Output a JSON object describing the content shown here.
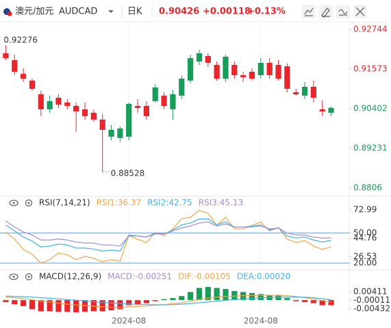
{
  "header": {
    "name": "澳元/加元",
    "symbol": "AUDCAD",
    "period": "日K",
    "price": "0.90426",
    "change": "+0.00118",
    "change_pct": "+0.13%"
  },
  "chart_data": [
    {
      "type": "candlestick",
      "categories": [
        null,
        null,
        null,
        null,
        null,
        null,
        null,
        null,
        null,
        null,
        null,
        null,
        null,
        null,
        "2024-08",
        null,
        null,
        null,
        null,
        null,
        null,
        null,
        null,
        null,
        null,
        null,
        null,
        null,
        null,
        "2024-08",
        null,
        null,
        null,
        null,
        null,
        null,
        null,
        null
      ],
      "open": [
        0.92037,
        0.91836,
        0.91432,
        0.9123,
        0.90826,
        0.90382,
        0.90725,
        0.90584,
        0.90483,
        0.90382,
        0.90281,
        0.90079,
        0.89574,
        0.89534,
        0.89574,
        0.90483,
        0.90483,
        0.90624,
        0.90786,
        0.90382,
        0.90786,
        0.9123,
        0.91795,
        0.91957,
        0.91694,
        0.9129,
        0.91694,
        0.91391,
        0.91492,
        0.91391,
        0.91755,
        0.91694,
        0.91654,
        0.90887,
        0.90786,
        0.91048,
        0.90382,
        0.90281
      ],
      "high": [
        0.92276,
        0.91997,
        0.91593,
        0.9129,
        0.90927,
        0.90786,
        0.90826,
        0.90685,
        0.90584,
        0.90584,
        0.90382,
        0.9024,
        0.89917,
        0.89877,
        0.90584,
        0.90685,
        0.90624,
        0.91129,
        0.90887,
        0.90947,
        0.91391,
        0.91997,
        0.92138,
        0.92037,
        0.91795,
        0.91997,
        0.91795,
        0.91492,
        0.91593,
        0.91896,
        0.91896,
        0.91836,
        0.91735,
        0.90988,
        0.91189,
        0.9123,
        0.90644,
        0.90462
      ],
      "low": [
        0.91836,
        0.91391,
        0.91189,
        0.90927,
        0.9018,
        0.90281,
        0.90422,
        0.90382,
        0.89716,
        0.90079,
        0.90018,
        0.88528,
        0.89473,
        0.89413,
        0.89473,
        0.90281,
        0.90079,
        0.90584,
        0.90382,
        0.90079,
        0.90685,
        0.91149,
        0.91694,
        0.91634,
        0.9123,
        0.91189,
        0.9129,
        0.91189,
        0.9123,
        0.9129,
        0.9129,
        0.9123,
        0.90887,
        0.90786,
        0.90685,
        0.90584,
        0.9018,
        0.9018
      ],
      "close": [
        0.91896,
        0.91492,
        0.9129,
        0.90988,
        0.90382,
        0.90624,
        0.90523,
        0.90483,
        0.90321,
        0.9018,
        0.90079,
        0.89776,
        0.89776,
        0.89816,
        0.90543,
        0.90422,
        0.9018,
        0.91028,
        0.90483,
        0.90826,
        0.9129,
        0.91896,
        0.92037,
        0.91755,
        0.9129,
        0.91936,
        0.91391,
        0.91331,
        0.9129,
        0.91755,
        0.91391,
        0.9129,
        0.90988,
        0.90826,
        0.91048,
        0.90725,
        0.90321,
        0.90426
      ],
      "up_color": "#1a9c5b",
      "down_color": "#e8262d",
      "ylim": [
        0.87858,
        0.93006
      ],
      "yticks": [
        0.92744,
        0.91573,
        0.90402,
        0.89231,
        0.8806
      ],
      "tick_colors": [
        "#e8262d",
        "#e8262d",
        "#1a9c5b",
        "#1a9c5b",
        "#1a9c5b"
      ],
      "max_label": "0.92276",
      "min_label": "0.88528"
    },
    {
      "type": "line",
      "title": "RSI(7,14,21)",
      "series": [
        {
          "name": "RSI1:36.37",
          "color": "#f5a445",
          "values": [
            50.7,
            43.9,
            33.6,
            28.9,
            20.0,
            23.4,
            30.2,
            28.2,
            23.4,
            26.8,
            24.8,
            21.4,
            23.4,
            22.0,
            47.3,
            43.9,
            40.5,
            50.7,
            47.3,
            54.1,
            64.3,
            65.7,
            72.5,
            69.8,
            57.5,
            65.7,
            54.1,
            54.1,
            57.5,
            60.9,
            52.0,
            55.5,
            43.9,
            40.5,
            42.5,
            37.0,
            33.6,
            36.37
          ]
        },
        {
          "name": "RSI2:42.75",
          "color": "#3fb3e6",
          "values": [
            58,
            52,
            46,
            42,
            36,
            37,
            39,
            38,
            35,
            35,
            34,
            32,
            33,
            32,
            48,
            47,
            46,
            50,
            49,
            53,
            58,
            60,
            64,
            64,
            58,
            61,
            56,
            56,
            57,
            58,
            53,
            55,
            47,
            45,
            46,
            43,
            41,
            42.75
          ]
        },
        {
          "name": "RSI3:45.13",
          "color": "#a48ad6",
          "values": [
            62,
            56,
            51,
            48,
            43,
            43,
            44,
            43,
            41,
            40,
            40,
            38,
            38,
            37,
            47,
            47,
            46,
            49,
            49,
            52,
            55,
            57,
            60,
            61,
            57,
            59,
            56,
            56,
            56,
            57,
            54,
            55,
            50,
            48,
            48,
            46,
            45,
            45.13
          ]
        }
      ],
      "ylim": [
        16.6,
        74.5
      ],
      "yticks": [
        72.99,
        {
          "value": 50,
          "label": "50.00"
        },
        44.76,
        26.53,
        {
          "value": 20,
          "label": "20.00"
        }
      ],
      "reference_lines": [
        50,
        20
      ],
      "reference_color": "#4aa3df"
    },
    {
      "type": "combo",
      "title": "MACD(12,26,9)",
      "series": [
        {
          "name": "MACD:-0.00251",
          "type": "bar",
          "color": "#a48ad6",
          "up_color": "#1a9c5b",
          "down_color": "#e8262d",
          "values": [
            -0.001,
            -0.002,
            -0.003,
            -0.0045,
            -0.0055,
            -0.0055,
            -0.0058,
            -0.0058,
            -0.006,
            -0.0058,
            -0.0055,
            -0.0055,
            -0.005,
            -0.0045,
            -0.0025,
            -0.002,
            -0.0015,
            -0.0005,
            0.0005,
            0.001,
            0.002,
            0.004,
            0.006,
            0.0065,
            0.006,
            0.0055,
            0.0045,
            0.004,
            0.0035,
            0.003,
            0.0025,
            0.0025,
            0.001,
            -0.0005,
            -0.001,
            -0.0015,
            -0.0025,
            -0.00251
          ]
        },
        {
          "name": "DIF:-0.00105",
          "type": "line",
          "color": "#f5a445",
          "values": [
            0.0015,
            0.0012,
            0.0008,
            0.0002,
            -0.0005,
            -0.001,
            -0.0015,
            -0.002,
            -0.0024,
            -0.0027,
            -0.003,
            -0.0033,
            -0.0035,
            -0.0036,
            -0.0033,
            -0.0031,
            -0.0029,
            -0.0025,
            -0.0022,
            -0.0018,
            -0.0013,
            -0.0006,
            0.0003,
            0.001,
            0.0014,
            0.0018,
            0.002,
            0.0022,
            0.0023,
            0.0024,
            0.0024,
            0.0024,
            0.0022,
            0.0018,
            0.0012,
            0.0006,
            -0.0002,
            -0.00105
          ]
        },
        {
          "name": "DEA:0.00020",
          "type": "line",
          "color": "#3fb3e6",
          "values": [
            0.002,
            0.0018,
            0.0017,
            0.0015,
            0.0012,
            0.0009,
            0.0006,
            0.0003,
            0.0,
            -0.0004,
            -0.0008,
            -0.0011,
            -0.0014,
            -0.0017,
            -0.0019,
            -0.0021,
            -0.0022,
            -0.0023,
            -0.0023,
            -0.0022,
            -0.002,
            -0.0017,
            -0.0013,
            -0.0009,
            -0.0005,
            -0.0001,
            0.0003,
            0.0006,
            0.0009,
            0.0011,
            0.0013,
            0.0014,
            0.0015,
            0.0015,
            0.0014,
            0.0012,
            0.0007,
            0.0002
          ]
        }
      ],
      "ylim": [
        -0.00634,
        0.00815
      ],
      "yticks": [
        0.00411,
        -0.00011,
        -0.00432
      ]
    }
  ]
}
